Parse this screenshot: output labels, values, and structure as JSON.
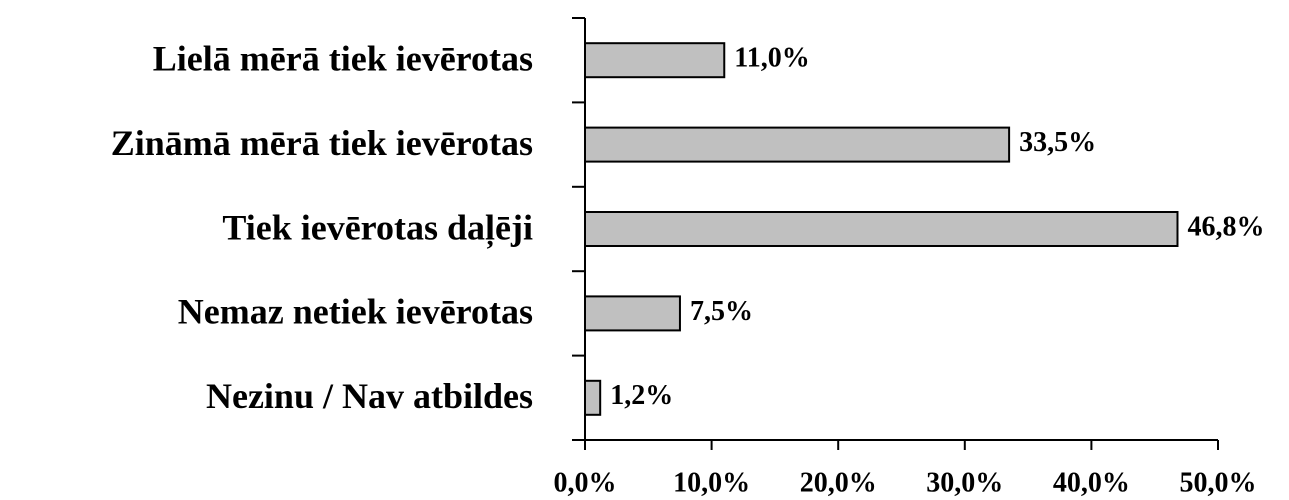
{
  "chart_data": {
    "type": "bar",
    "orientation": "horizontal",
    "categories": [
      "Lielā mērā tiek ievērotas",
      "Zināmā mērā tiek ievērotas",
      "Tiek ievērotas daļēji",
      "Nemaz netiek ievērotas",
      "Nezinu / Nav atbildes"
    ],
    "values": [
      11.0,
      33.5,
      46.8,
      7.5,
      1.2
    ],
    "value_labels": [
      "11,0%",
      "33,5%",
      "46,8%",
      "7,5%",
      "1,2%"
    ],
    "color": "#c0c0c0",
    "xlim": [
      0,
      50
    ],
    "xticks": [
      {
        "value": 0,
        "label": "0,0%"
      },
      {
        "value": 10,
        "label": "10,0%"
      },
      {
        "value": 20,
        "label": "20,0%"
      },
      {
        "value": 30,
        "label": "30,0%"
      },
      {
        "value": 40,
        "label": "40,0%"
      },
      {
        "value": 50,
        "label": "50,0%"
      }
    ]
  }
}
